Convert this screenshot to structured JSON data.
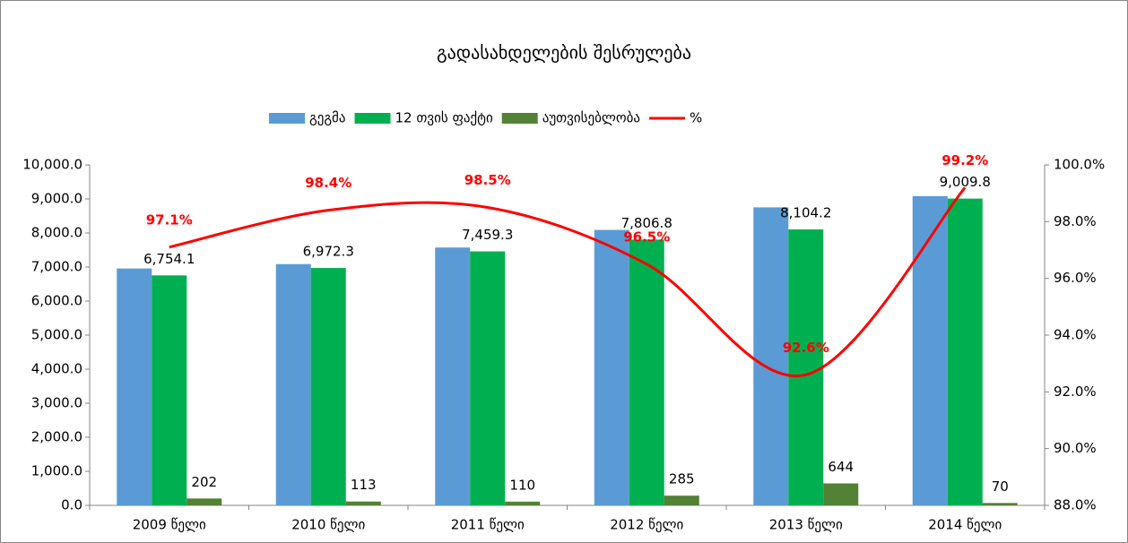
{
  "chart_data": {
    "type": "bar_line",
    "title": "გადასახდელების შესრულება",
    "categories": [
      "2009 წელი",
      "2010 წელი",
      "2011 წელი",
      "2012 წელი",
      "2013 წელი",
      "2014 წელი"
    ],
    "series": [
      {
        "name": "გეგმა",
        "color": "#5b9bd5",
        "values": [
          6956,
          7086,
          7573,
          8090,
          8752,
          9083
        ]
      },
      {
        "name": "12 თვის ფაქტი",
        "color": "#00b050",
        "values": [
          6754.1,
          6972.3,
          7459.3,
          7806.8,
          8104.2,
          9009.8
        ],
        "value_labels": [
          "6,754.1",
          "6,972.3",
          "7,459.3",
          "7,806.8",
          "8,104.2",
          "9,009.8"
        ]
      },
      {
        "name": "აუთვისებლობა",
        "color": "#538135",
        "values": [
          202,
          113,
          110,
          285,
          644,
          70
        ]
      },
      {
        "name": "%",
        "color": "#ff0000",
        "type": "line",
        "axis": "y2",
        "values": [
          97.1,
          98.4,
          98.5,
          96.5,
          92.6,
          99.2
        ],
        "value_labels": [
          "97.1%",
          "98.4%",
          "98.5%",
          "96.5%",
          "92.6%",
          "99.2%"
        ]
      }
    ],
    "ylim": [
      0,
      10000
    ],
    "yticks": [
      {
        "value": 0,
        "label": "0.0"
      },
      {
        "value": 1000,
        "label": "1,000.0"
      },
      {
        "value": 2000,
        "label": "2,000.0"
      },
      {
        "value": 3000,
        "label": "3,000.0"
      },
      {
        "value": 4000,
        "label": "4,000.0"
      },
      {
        "value": 5000,
        "label": "5,000.0"
      },
      {
        "value": 6000,
        "label": "6,000.0"
      },
      {
        "value": 7000,
        "label": "7,000.0"
      },
      {
        "value": 8000,
        "label": "8,000.0"
      },
      {
        "value": 9000,
        "label": "9,000.0"
      },
      {
        "value": 10000,
        "label": "10,000.0"
      }
    ],
    "y2lim": [
      88,
      100
    ],
    "y2ticks": [
      {
        "value": 88,
        "label": "88.0%"
      },
      {
        "value": 90,
        "label": "90.0%"
      },
      {
        "value": 92,
        "label": "92.0%"
      },
      {
        "value": 94,
        "label": "94.0%"
      },
      {
        "value": 96,
        "label": "96.0%"
      },
      {
        "value": 98,
        "label": "98.0%"
      },
      {
        "value": 100,
        "label": "100.0%"
      }
    ]
  }
}
